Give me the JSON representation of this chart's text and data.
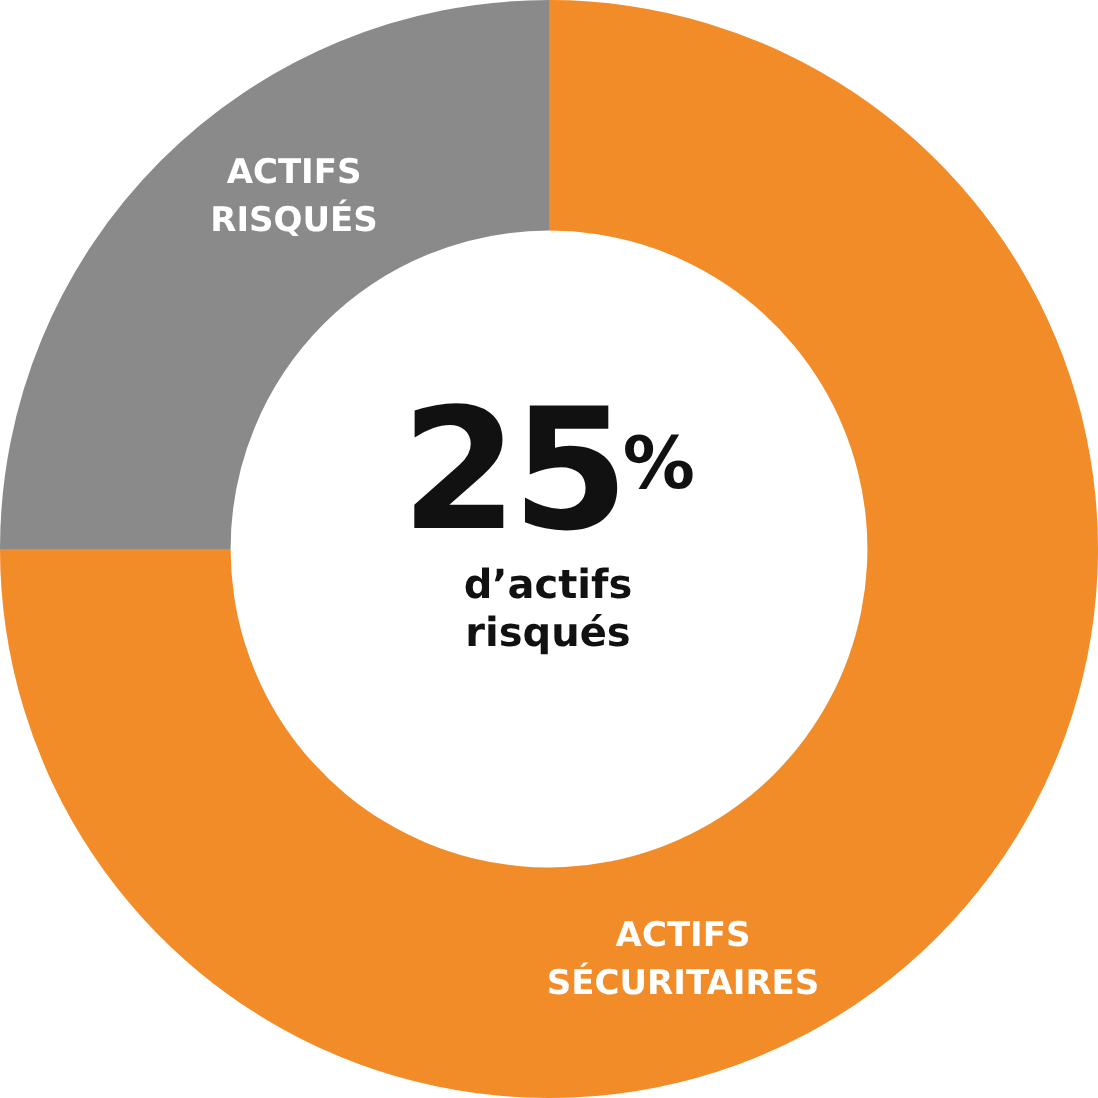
{
  "chart_data": {
    "type": "donut",
    "categories": [
      "ACTIFS SÉCURITAIRES",
      "ACTIFS RISQUÉS"
    ],
    "values": [
      75,
      25
    ],
    "colors": [
      "#f28c28",
      "#8a8a8a"
    ],
    "annotations": [
      "25$^{%}$",
      "d’actifs risqués"
    ]
  }
}
